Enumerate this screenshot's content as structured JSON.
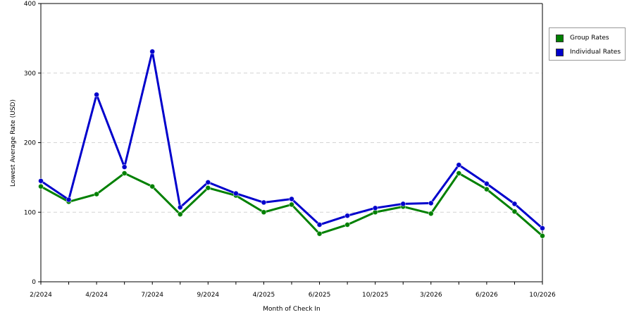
{
  "chart_data": {
    "type": "line",
    "title": "",
    "xlabel": "Month of Check In",
    "ylabel": "Lowest Average Rate (USD)",
    "ylim": [
      0,
      400
    ],
    "yticks": [
      0,
      100,
      200,
      300,
      400
    ],
    "ytick_labels": [
      "0",
      "100",
      "200",
      "300",
      "400"
    ],
    "x_tick_labels": [
      {
        "index": 0,
        "label": "2/2024"
      },
      {
        "index": 2,
        "label": "4/2024"
      },
      {
        "index": 4,
        "label": "7/2024"
      },
      {
        "index": 6,
        "label": "9/2024"
      },
      {
        "index": 8,
        "label": "4/2025"
      },
      {
        "index": 10,
        "label": "6/2025"
      },
      {
        "index": 12,
        "label": "10/2025"
      },
      {
        "index": 14,
        "label": "3/2026"
      },
      {
        "index": 16,
        "label": "6/2026"
      },
      {
        "index": 18,
        "label": "10/2026"
      }
    ],
    "grid": "horizontal-dashed",
    "legend_position": "top-right",
    "series": [
      {
        "name": "Group Rates",
        "color": "#008000",
        "values": [
          137,
          115,
          126,
          156,
          137,
          97,
          135,
          124,
          100,
          111,
          69,
          82,
          100,
          108,
          98,
          156,
          133,
          101,
          66
        ]
      },
      {
        "name": "Individual Rates",
        "color": "#0000cc",
        "values": [
          145,
          118,
          269,
          165,
          331,
          107,
          143,
          127,
          114,
          119,
          82,
          95,
          106,
          112,
          113,
          168,
          141,
          112,
          77
        ]
      }
    ]
  }
}
